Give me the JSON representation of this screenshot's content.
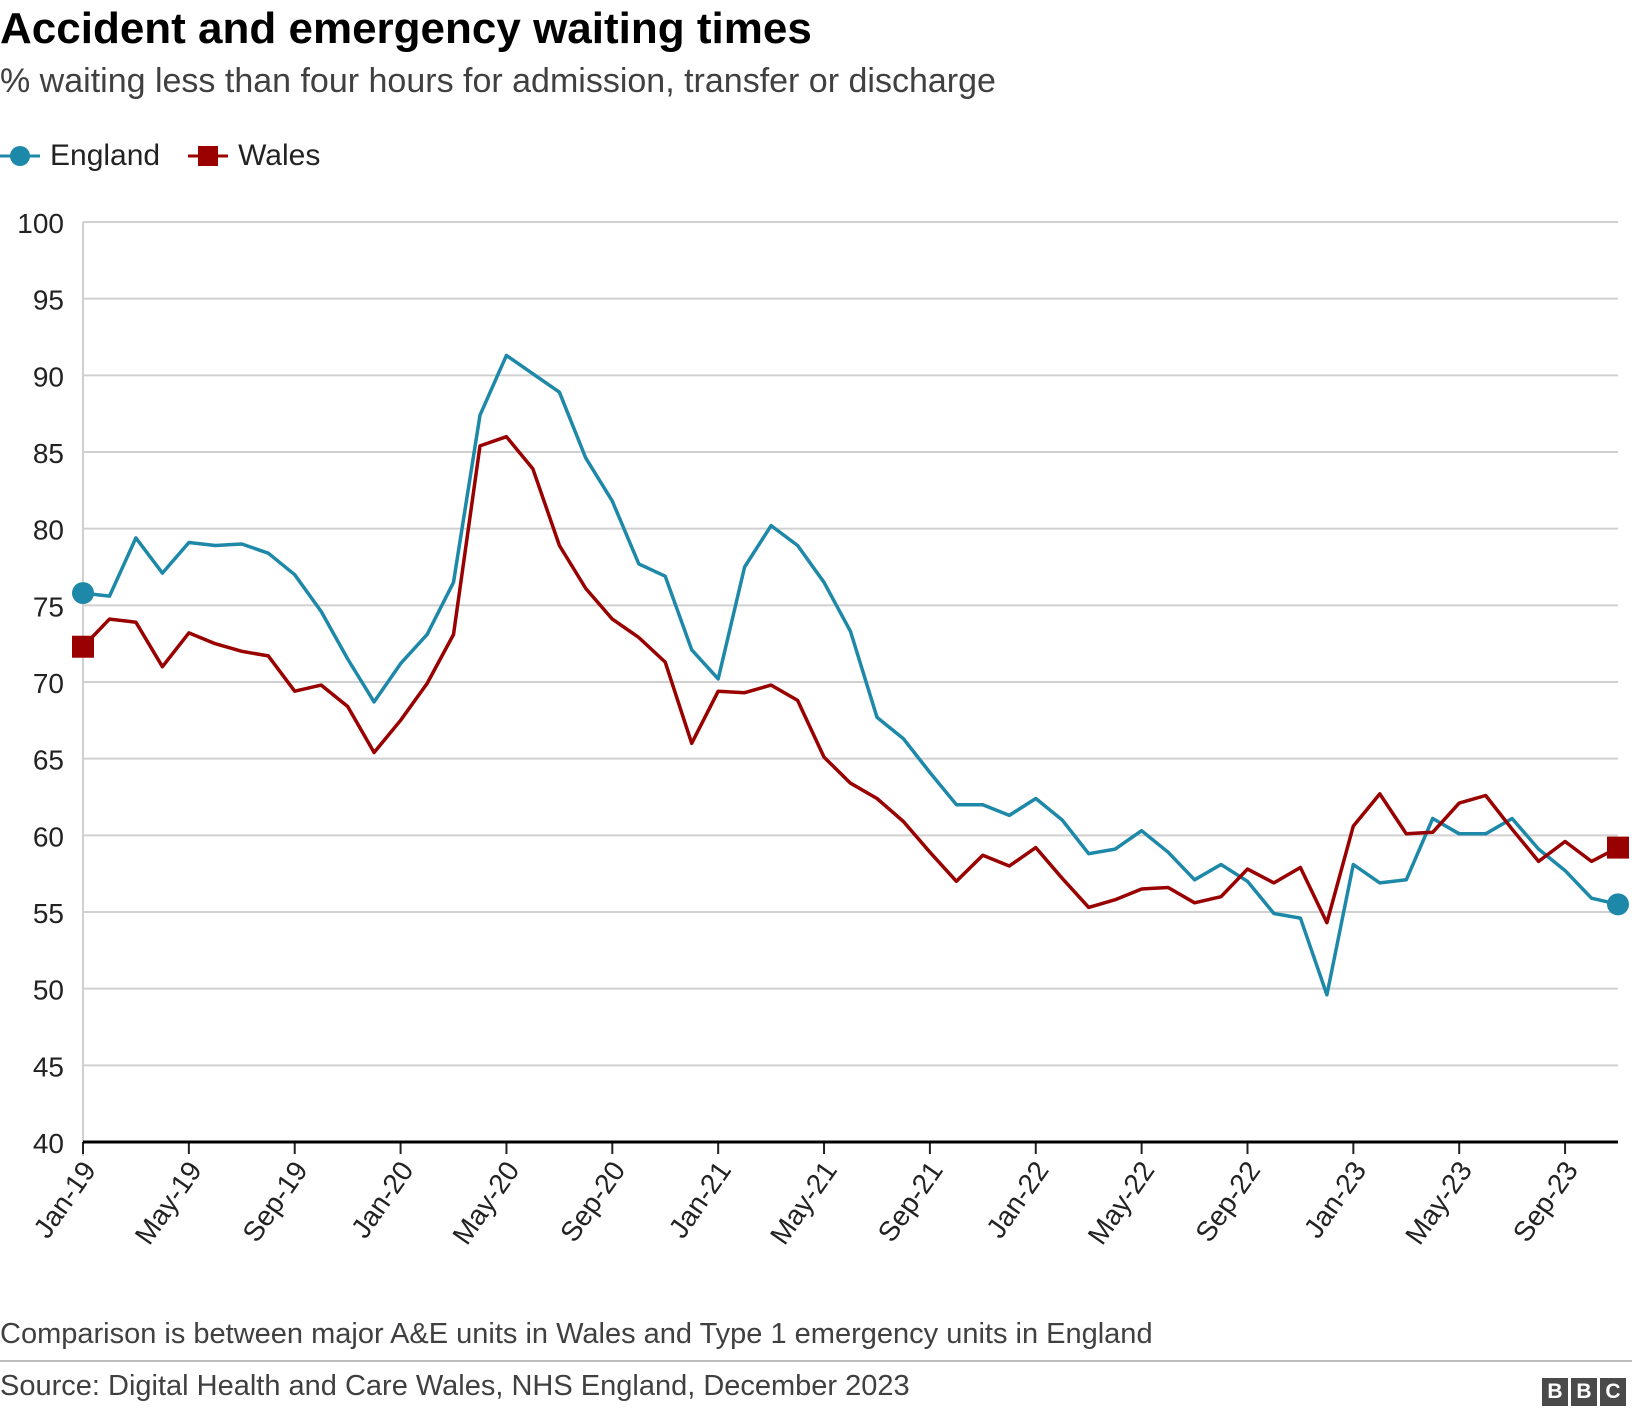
{
  "header": {
    "title": "Accident and emergency waiting times",
    "subtitle": "% waiting less than four hours for admission, transfer or discharge"
  },
  "legend": [
    {
      "label": "England",
      "color": "#1d88a8",
      "marker": "circle"
    },
    {
      "label": "Wales",
      "color": "#990000",
      "marker": "square"
    }
  ],
  "footer": {
    "note": "Comparison is between major A&E units in Wales and Type 1 emergency units in England",
    "source": "Source: Digital Health and Care Wales, NHS England, December 2023",
    "logo": [
      "B",
      "B",
      "C"
    ]
  },
  "chart_data": {
    "type": "line",
    "title": "Accident and emergency waiting times",
    "subtitle": "% waiting less than four hours for admission, transfer or discharge",
    "xlabel": "",
    "ylabel": "",
    "ylim": [
      40,
      100
    ],
    "yticks": [
      "100",
      "95",
      "90",
      "85",
      "80",
      "75",
      "70",
      "65",
      "60",
      "55",
      "50",
      "45",
      "40"
    ],
    "ytick_values": [
      100,
      95,
      90,
      85,
      80,
      75,
      70,
      65,
      60,
      55,
      50,
      45,
      40
    ],
    "xticks": [
      "Jan-19",
      "May-19",
      "Sep-19",
      "Jan-20",
      "May-20",
      "Sep-20",
      "Jan-21",
      "May-21",
      "Sep-21",
      "Jan-22",
      "May-22",
      "Sep-22",
      "Jan-23",
      "May-23",
      "Sep-23"
    ],
    "xtick_index": [
      0,
      4,
      8,
      12,
      16,
      20,
      24,
      28,
      32,
      36,
      40,
      44,
      48,
      52,
      56
    ],
    "x_start": "Jan-19",
    "x_end": "Nov-23",
    "grid": true,
    "legend_position": "top-left",
    "series": [
      {
        "name": "England",
        "color": "#1d88a8",
        "marker": "circle",
        "values": [
          75.8,
          75.6,
          79.4,
          77.1,
          79.1,
          78.9,
          79.0,
          78.4,
          77.0,
          74.6,
          71.5,
          68.7,
          71.2,
          73.1,
          76.5,
          87.4,
          91.3,
          90.1,
          88.9,
          84.6,
          81.8,
          77.7,
          76.9,
          72.1,
          70.2,
          77.5,
          80.2,
          78.9,
          76.5,
          73.3,
          67.7,
          66.3,
          64.1,
          62.0,
          62.0,
          61.3,
          62.4,
          61.0,
          58.8,
          59.1,
          60.3,
          58.9,
          57.1,
          58.1,
          57.0,
          54.9,
          54.6,
          49.6,
          58.1,
          56.9,
          57.1,
          61.1,
          60.1,
          60.1,
          61.1,
          59.1,
          57.7,
          55.9,
          55.5
        ]
      },
      {
        "name": "Wales",
        "color": "#990000",
        "marker": "square",
        "values": [
          72.3,
          74.1,
          73.9,
          71.0,
          73.2,
          72.5,
          72.0,
          71.7,
          69.4,
          69.8,
          68.4,
          65.4,
          67.5,
          69.9,
          73.1,
          85.4,
          86.0,
          83.9,
          78.9,
          76.1,
          74.1,
          72.9,
          71.3,
          66.0,
          69.4,
          69.3,
          69.8,
          68.8,
          65.1,
          63.4,
          62.4,
          60.9,
          58.9,
          57.0,
          58.7,
          58.0,
          59.2,
          57.2,
          55.3,
          55.8,
          56.5,
          56.6,
          55.6,
          56.0,
          57.8,
          56.9,
          57.9,
          54.3,
          60.6,
          62.7,
          60.1,
          60.2,
          62.1,
          62.6,
          60.4,
          58.3,
          59.6,
          58.3,
          59.2
        ]
      }
    ]
  }
}
